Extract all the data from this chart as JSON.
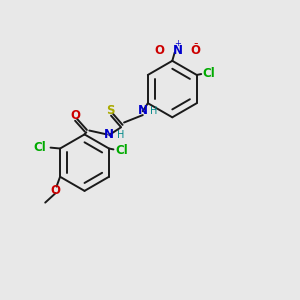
{
  "bg_color": "#e8e8e8",
  "bond_color": "#1a1a1a",
  "colors": {
    "N": "#0000cc",
    "O": "#cc0000",
    "S": "#aaaa00",
    "Cl": "#00aa00",
    "C": "#1a1a1a",
    "H": "#008888"
  },
  "font_size": 8.5,
  "small_font": 7.0,
  "lw": 1.4,
  "ring_r": 0.95
}
